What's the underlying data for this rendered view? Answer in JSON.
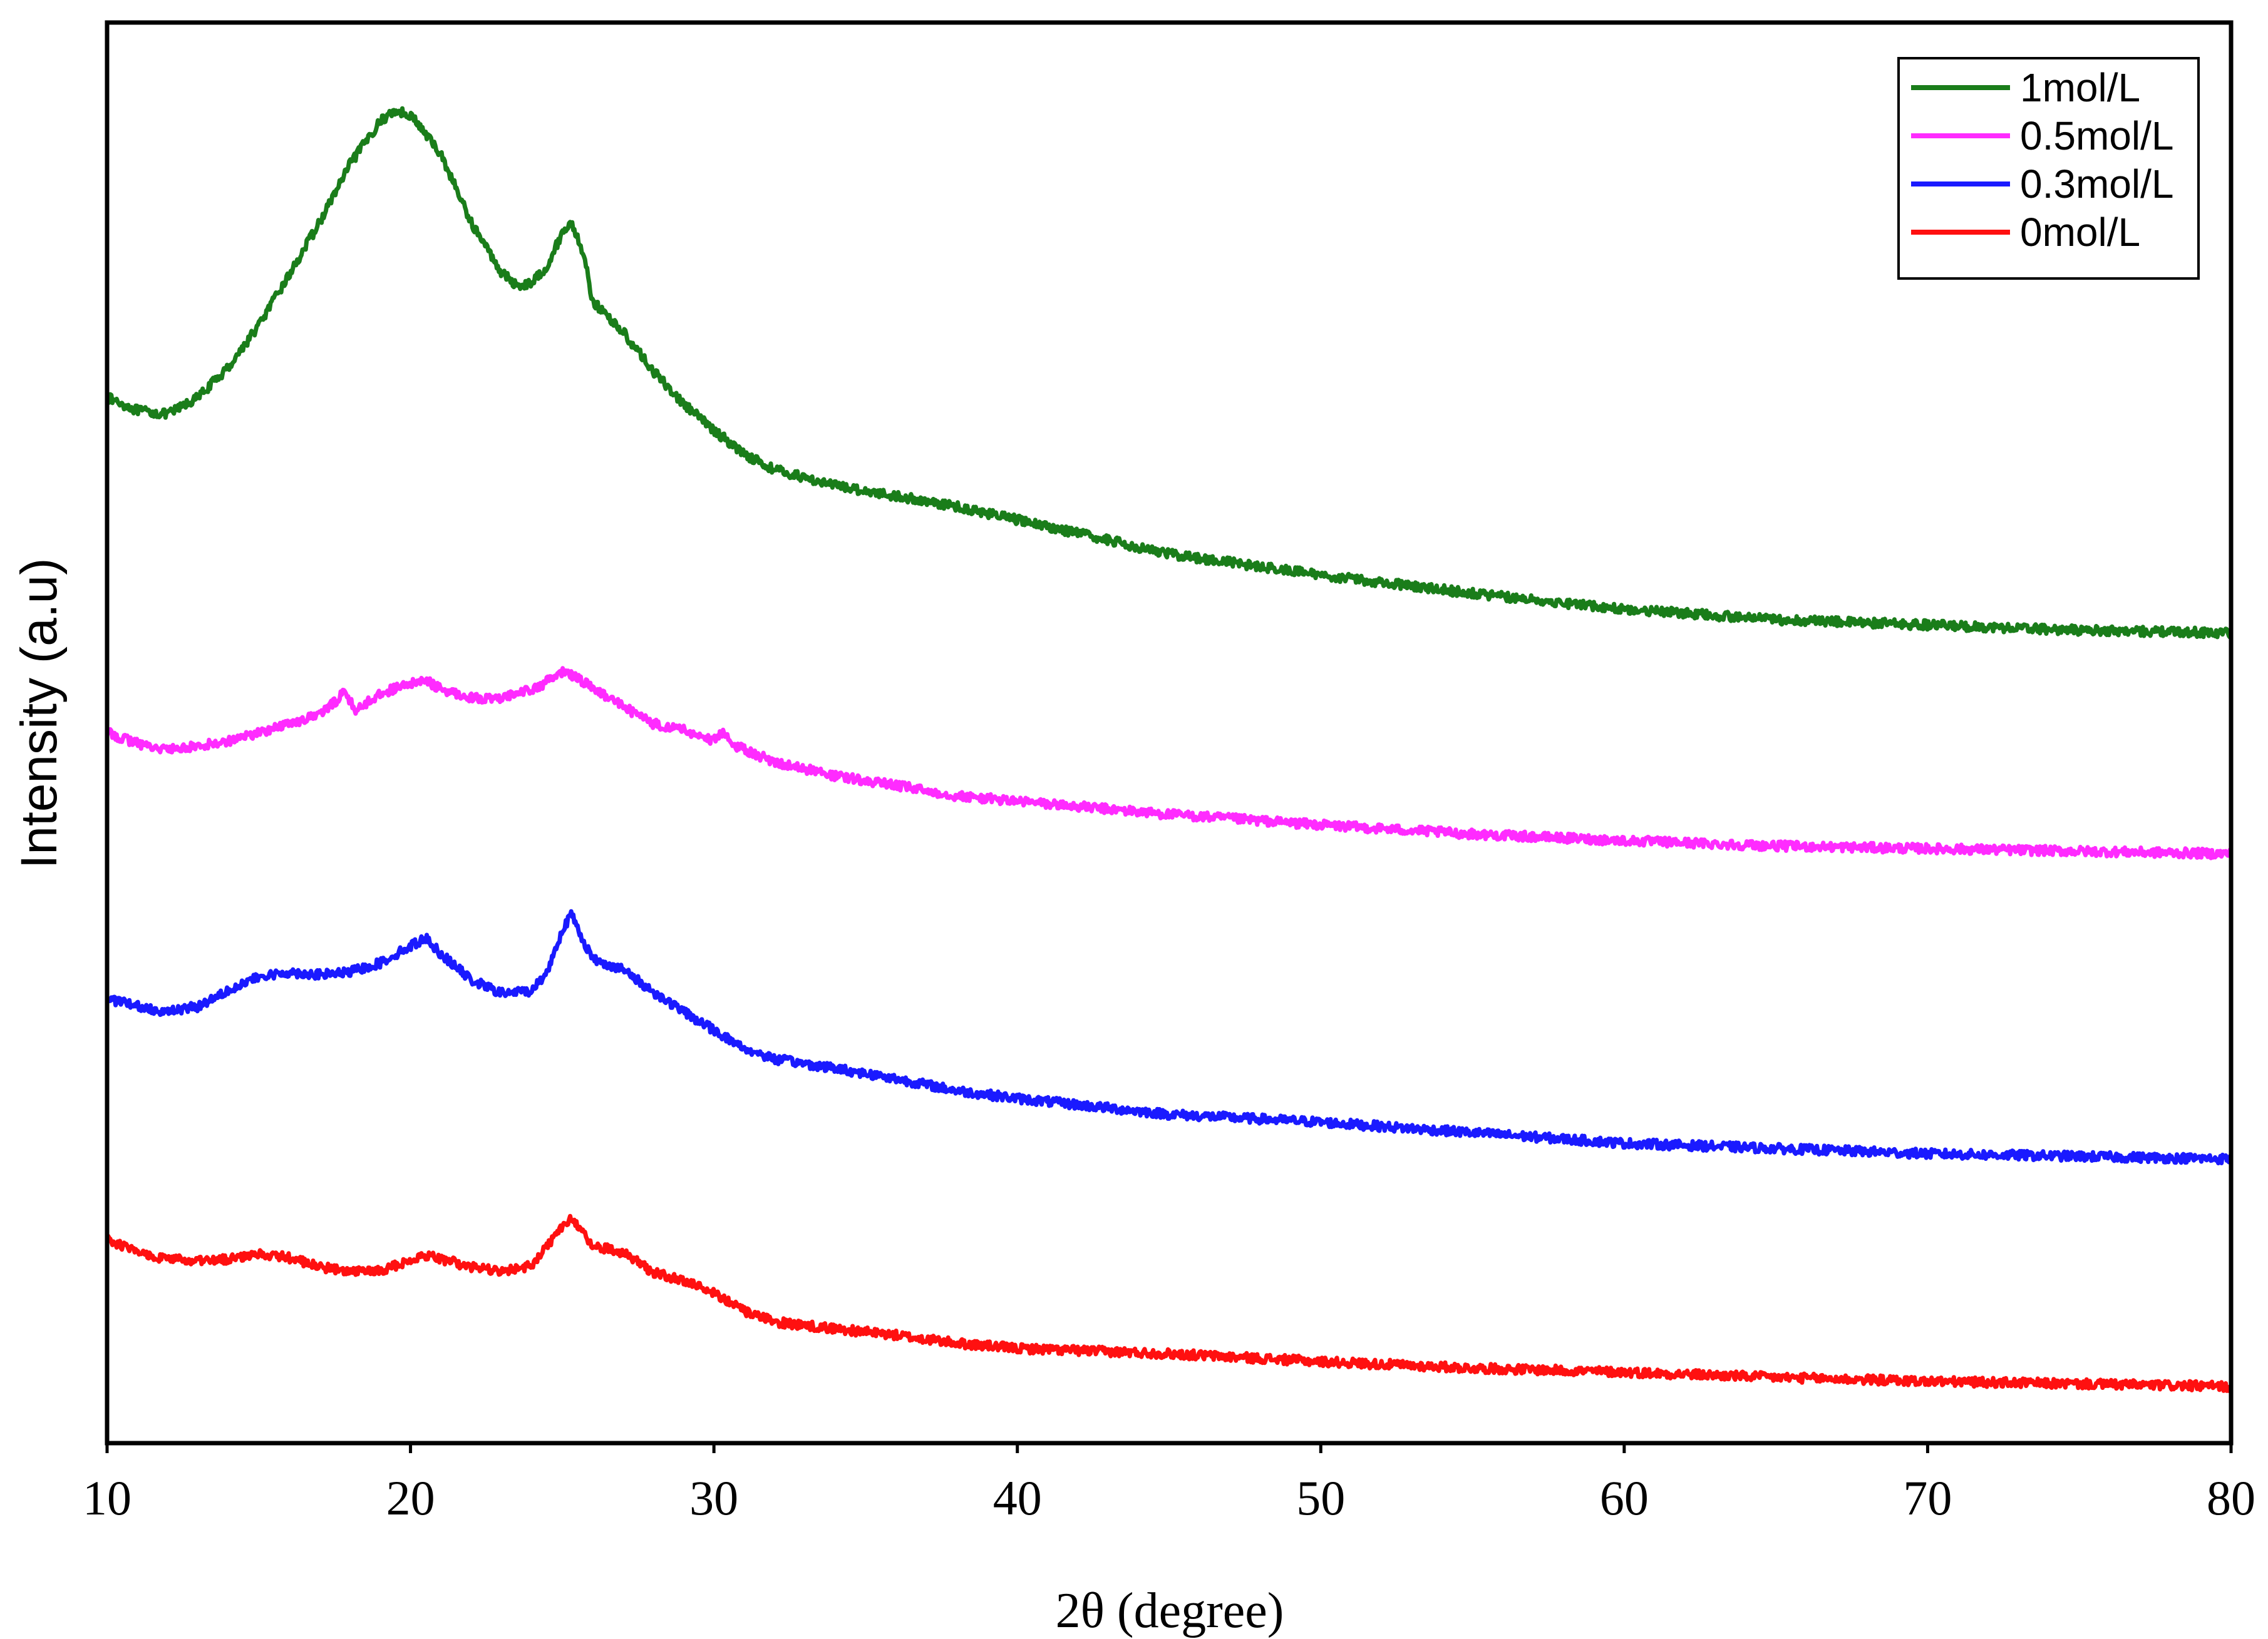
{
  "chart_data": {
    "type": "line",
    "title": "",
    "xlabel": "2θ (degree)",
    "ylabel": "Intensity (a.u)",
    "xlim": [
      10,
      80
    ],
    "xticks": [
      10,
      20,
      30,
      40,
      50,
      60,
      70,
      80
    ],
    "yticks_shown": false,
    "grid": false,
    "legend_position": "top-right",
    "series": [
      {
        "name": "1mol/L",
        "color": "#1a7d1a",
        "points": [
          [
            10,
            0.735
          ],
          [
            11,
            0.725
          ],
          [
            12,
            0.722
          ],
          [
            13,
            0.735
          ],
          [
            14,
            0.758
          ],
          [
            15,
            0.79
          ],
          [
            16,
            0.828
          ],
          [
            17,
            0.868
          ],
          [
            18,
            0.912
          ],
          [
            19,
            0.945
          ],
          [
            19.5,
            0.953
          ],
          [
            20,
            0.95
          ],
          [
            21,
            0.92
          ],
          [
            22,
            0.868
          ],
          [
            23,
            0.83
          ],
          [
            23.5,
            0.82
          ],
          [
            24,
            0.822
          ],
          [
            24.5,
            0.835
          ],
          [
            25,
            0.86
          ],
          [
            25.3,
            0.868
          ],
          [
            25.7,
            0.845
          ],
          [
            26,
            0.808
          ],
          [
            27,
            0.785
          ],
          [
            28,
            0.755
          ],
          [
            29,
            0.73
          ],
          [
            30,
            0.71
          ],
          [
            31,
            0.692
          ],
          [
            32,
            0.68
          ],
          [
            34,
            0.668
          ],
          [
            36,
            0.66
          ],
          [
            38,
            0.652
          ],
          [
            40,
            0.642
          ],
          [
            45,
            0.616
          ],
          [
            50,
            0.6
          ],
          [
            55,
            0.586
          ],
          [
            60,
            0.574
          ],
          [
            65,
            0.566
          ],
          [
            70,
            0.562
          ],
          [
            75,
            0.558
          ],
          [
            80,
            0.556
          ]
        ]
      },
      {
        "name": "0.5mol/L",
        "color": "#ff2bff",
        "points": [
          [
            10,
            0.48
          ],
          [
            11,
            0.472
          ],
          [
            12,
            0.467
          ],
          [
            13,
            0.47
          ],
          [
            14,
            0.474
          ],
          [
            15,
            0.48
          ],
          [
            16,
            0.487
          ],
          [
            17,
            0.494
          ],
          [
            17.5,
            0.503
          ],
          [
            17.8,
            0.512
          ],
          [
            18.2,
            0.497
          ],
          [
            19,
            0.51
          ],
          [
            20,
            0.517
          ],
          [
            20.5,
            0.52
          ],
          [
            21,
            0.513
          ],
          [
            22,
            0.507
          ],
          [
            23,
            0.505
          ],
          [
            23.5,
            0.512
          ],
          [
            24,
            0.512
          ],
          [
            25,
            0.526
          ],
          [
            25.5,
            0.522
          ],
          [
            26,
            0.514
          ],
          [
            27,
            0.5
          ],
          [
            28,
            0.487
          ],
          [
            29,
            0.482
          ],
          [
            30,
            0.474
          ],
          [
            30.3,
            0.48
          ],
          [
            30.7,
            0.47
          ],
          [
            32,
            0.458
          ],
          [
            34,
            0.447
          ],
          [
            36,
            0.44
          ],
          [
            38,
            0.432
          ],
          [
            40,
            0.428
          ],
          [
            45,
            0.418
          ],
          [
            50,
            0.41
          ],
          [
            55,
            0.403
          ],
          [
            60,
            0.398
          ],
          [
            65,
            0.394
          ],
          [
            70,
            0.392
          ],
          [
            75,
            0.39
          ],
          [
            80,
            0.388
          ]
        ]
      },
      {
        "name": "0.3mol/L",
        "color": "#1a1aff",
        "points": [
          [
            10,
            0.278
          ],
          [
            11,
            0.272
          ],
          [
            12,
            0.268
          ],
          [
            13,
            0.272
          ],
          [
            14,
            0.285
          ],
          [
            15,
            0.294
          ],
          [
            16,
            0.298
          ],
          [
            17,
            0.296
          ],
          [
            18,
            0.298
          ],
          [
            19,
            0.305
          ],
          [
            20,
            0.318
          ],
          [
            20.5,
            0.324
          ],
          [
            21,
            0.312
          ],
          [
            22,
            0.292
          ],
          [
            23,
            0.282
          ],
          [
            24,
            0.284
          ],
          [
            24.5,
            0.298
          ],
          [
            25,
            0.33
          ],
          [
            25.3,
            0.342
          ],
          [
            25.7,
            0.322
          ],
          [
            26,
            0.308
          ],
          [
            27,
            0.3
          ],
          [
            28,
            0.283
          ],
          [
            29,
            0.268
          ],
          [
            30,
            0.254
          ],
          [
            31,
            0.24
          ],
          [
            32,
            0.232
          ],
          [
            34,
            0.225
          ],
          [
            36,
            0.217
          ],
          [
            38,
            0.208
          ],
          [
            40,
            0.202
          ],
          [
            45,
            0.19
          ],
          [
            50,
            0.184
          ],
          [
            55,
            0.176
          ],
          [
            60,
            0.168
          ],
          [
            65,
            0.164
          ],
          [
            70,
            0.16
          ],
          [
            75,
            0.158
          ],
          [
            80,
            0.156
          ]
        ]
      },
      {
        "name": "0mol/L",
        "color": "#ff1010",
        "points": [
          [
            10,
            0.095
          ],
          [
            11,
            0.085
          ],
          [
            12,
            0.08
          ],
          [
            13,
            0.078
          ],
          [
            14,
            0.08
          ],
          [
            15,
            0.084
          ],
          [
            16,
            0.081
          ],
          [
            17,
            0.074
          ],
          [
            18,
            0.07
          ],
          [
            19,
            0.071
          ],
          [
            20,
            0.079
          ],
          [
            20.5,
            0.083
          ],
          [
            21,
            0.08
          ],
          [
            22,
            0.074
          ],
          [
            23,
            0.07
          ],
          [
            24,
            0.075
          ],
          [
            24.5,
            0.09
          ],
          [
            25,
            0.105
          ],
          [
            25.3,
            0.11
          ],
          [
            25.7,
            0.1
          ],
          [
            26,
            0.09
          ],
          [
            27,
            0.085
          ],
          [
            28,
            0.07
          ],
          [
            29,
            0.063
          ],
          [
            30,
            0.055
          ],
          [
            31,
            0.04
          ],
          [
            32,
            0.032
          ],
          [
            34,
            0.027
          ],
          [
            36,
            0.022
          ],
          [
            38,
            0.016
          ],
          [
            40,
            0.012
          ],
          [
            45,
            0.008
          ],
          [
            50,
            0.002
          ],
          [
            55,
            -0.003
          ],
          [
            60,
            -0.006
          ],
          [
            65,
            -0.01
          ],
          [
            70,
            -0.013
          ],
          [
            75,
            -0.015
          ],
          [
            80,
            -0.017
          ]
        ]
      }
    ]
  }
}
